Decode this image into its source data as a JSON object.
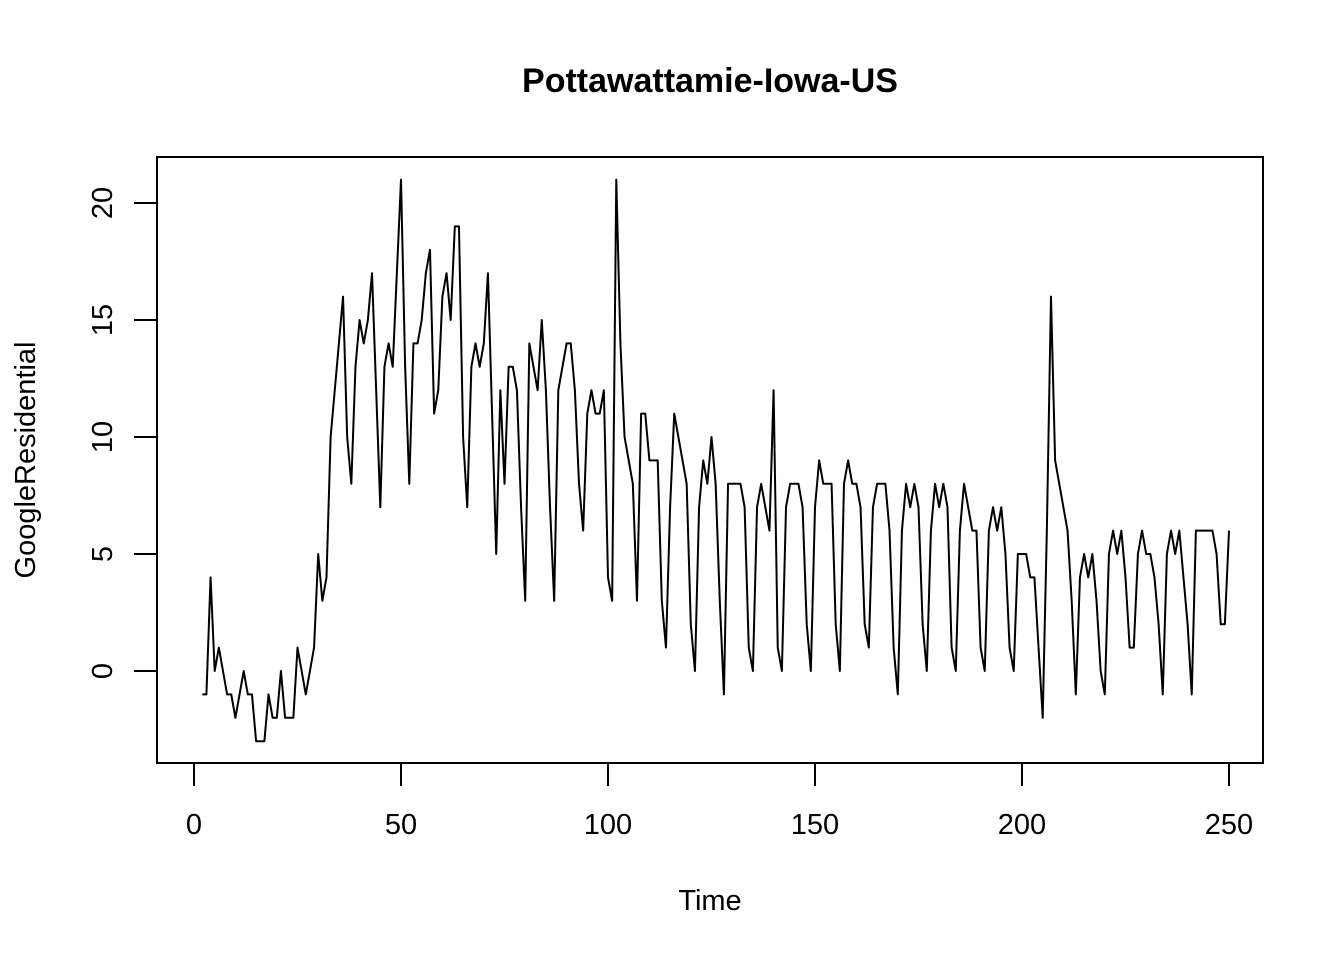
{
  "chart_data": {
    "type": "line",
    "title": "Pottawattamie-Iowa-US",
    "xlabel": "Time",
    "ylabel": "GoogleResidential",
    "xlim": [
      0,
      250
    ],
    "ylim": [
      -3,
      21
    ],
    "x_ticks": [
      0,
      50,
      100,
      150,
      200,
      250
    ],
    "y_ticks": [
      0,
      5,
      10,
      15,
      20
    ],
    "grid": false,
    "legend": "none",
    "x_start": 2,
    "values": [
      -1,
      -1,
      4,
      0,
      1,
      0,
      -1,
      -1,
      -2,
      -1,
      0,
      -1,
      -1,
      -3,
      -3,
      -3,
      -1,
      -2,
      -2,
      0,
      -2,
      -2,
      -2,
      1,
      0,
      -1,
      0,
      1,
      5,
      3,
      4,
      10,
      12,
      14,
      16,
      10,
      8,
      13,
      15,
      14,
      15,
      17,
      12,
      7,
      13,
      14,
      13,
      17,
      21,
      13,
      8,
      14,
      14,
      15,
      17,
      18,
      11,
      12,
      16,
      17,
      15,
      19,
      19,
      10,
      7,
      13,
      14,
      13,
      14,
      17,
      11,
      5,
      12,
      8,
      13,
      13,
      12,
      7,
      3,
      14,
      13,
      12,
      15,
      12,
      7,
      3,
      12,
      13,
      14,
      14,
      12,
      8,
      6,
      11,
      12,
      11,
      11,
      12,
      4,
      3,
      21,
      14,
      10,
      9,
      8,
      3,
      11,
      11,
      9,
      9,
      9,
      3,
      1,
      7,
      11,
      10,
      9,
      8,
      2,
      0,
      7,
      9,
      8,
      10,
      8,
      3,
      -1,
      8,
      8,
      8,
      8,
      7,
      1,
      0,
      7,
      8,
      7,
      6,
      12,
      1,
      0,
      7,
      8,
      8,
      8,
      7,
      2,
      0,
      7,
      9,
      8,
      8,
      8,
      2,
      0,
      8,
      9,
      8,
      8,
      7,
      2,
      1,
      7,
      8,
      8,
      8,
      6,
      1,
      -1,
      6,
      8,
      7,
      8,
      7,
      2,
      0,
      6,
      8,
      7,
      8,
      7,
      1,
      0,
      6,
      8,
      7,
      6,
      6,
      1,
      0,
      6,
      7,
      6,
      7,
      5,
      1,
      0,
      5,
      5,
      5,
      4,
      4,
      1,
      -2,
      6,
      16,
      9,
      8,
      7,
      6,
      3,
      -1,
      4,
      5,
      4,
      5,
      3,
      0,
      -1,
      5,
      6,
      5,
      6,
      4,
      1,
      1,
      5,
      6,
      5,
      5,
      4,
      2,
      -1,
      5,
      6,
      5,
      6,
      4,
      2,
      -1,
      6,
      6,
      6,
      6,
      6,
      5,
      2,
      2,
      6
    ]
  }
}
